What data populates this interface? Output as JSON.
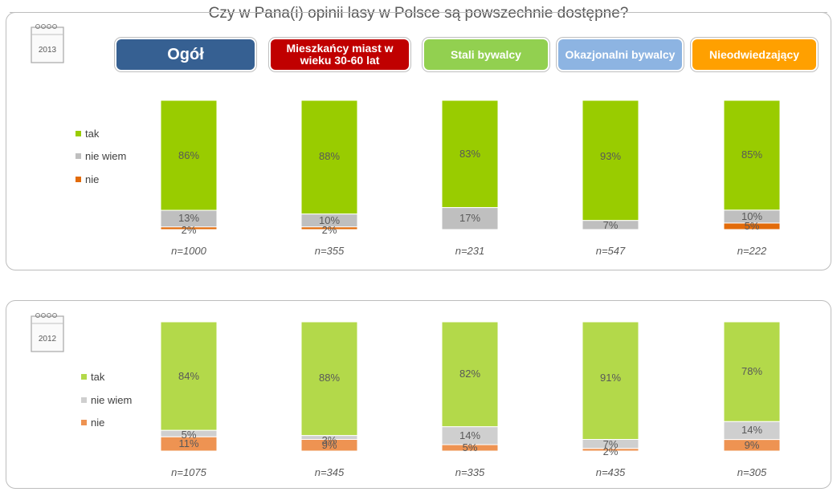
{
  "title": "Czy w Pana(i) opinii lasy w Polsce są powszechnie dostępne?",
  "headers": [
    {
      "label": "Ogół",
      "color": "#366092"
    },
    {
      "label": "Mieszkańcy miast w wieku 30-60 lat",
      "color": "#c00000"
    },
    {
      "label": "Stali bywalcy",
      "color": "#92d050"
    },
    {
      "label": "Okazjonalni bywalcy",
      "color": "#8db4e2"
    },
    {
      "label": "Nieodwiedzający",
      "color": "#ffa000"
    }
  ],
  "chart_data": [
    {
      "type": "bar",
      "stacked": true,
      "year": "2013",
      "categories": [
        "Ogół",
        "Mieszkańcy miast w wieku 30-60 lat",
        "Stali bywalcy",
        "Okazjonalni bywalcy",
        "Nieodwiedzający"
      ],
      "n_labels": [
        "n=1000",
        "n=355",
        "n=231",
        "n=547",
        "n=222"
      ],
      "series": [
        {
          "name": "tak",
          "color": "#99cc00",
          "values": [
            86,
            88,
            83,
            93,
            85
          ],
          "labels": [
            "86%",
            "88%",
            "83%",
            "93%",
            "85%"
          ]
        },
        {
          "name": "nie wiem",
          "color": "#bfbfbf",
          "values": [
            13,
            10,
            17,
            7,
            10
          ],
          "labels": [
            "13%",
            "10%",
            "17%",
            "7%",
            "10%"
          ]
        },
        {
          "name": "nie",
          "color": "#e26b0a",
          "values": [
            2,
            2,
            0,
            0,
            5
          ],
          "labels": [
            "2%",
            "2%",
            "",
            "",
            "5%"
          ]
        }
      ]
    },
    {
      "type": "bar",
      "stacked": true,
      "year": "2012",
      "categories": [
        "Ogół",
        "Mieszkańcy miast w wieku 30-60 lat",
        "Stali bywalcy",
        "Okazjonalni bywalcy",
        "Nieodwiedzający"
      ],
      "n_labels": [
        "n=1075",
        "n=345",
        "n=335",
        "n=435",
        "n=305"
      ],
      "series": [
        {
          "name": "tak",
          "color": "#b3d94a",
          "values": [
            84,
            88,
            82,
            91,
            78
          ],
          "labels": [
            "84%",
            "88%",
            "82%",
            "91%",
            "78%"
          ]
        },
        {
          "name": "nie wiem",
          "color": "#cfcfcf",
          "values": [
            5,
            3,
            14,
            7,
            14
          ],
          "labels": [
            "5%",
            "3%",
            "14%",
            "7%",
            "14%"
          ]
        },
        {
          "name": "nie",
          "color": "#ee9352",
          "values": [
            11,
            9,
            5,
            2,
            9
          ],
          "labels": [
            "11%",
            "9%",
            "5%",
            "2%",
            "9%"
          ]
        }
      ]
    }
  ]
}
